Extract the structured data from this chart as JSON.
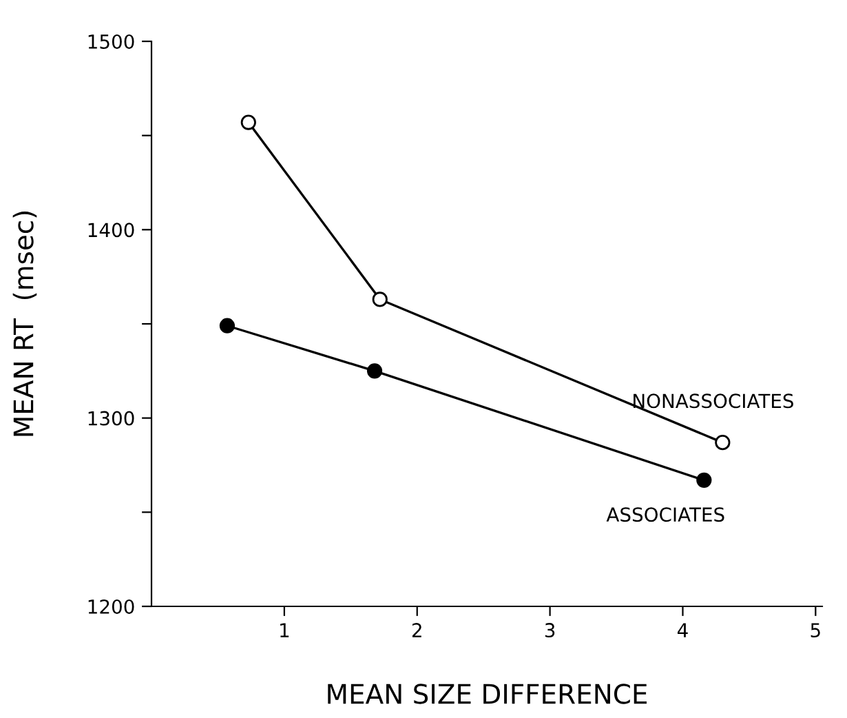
{
  "chart_data": {
    "type": "line",
    "xlabel": "MEAN SIZE DIFFERENCE",
    "ylabel": "MEAN RT  (msec)",
    "xlim": [
      0,
      5.05
    ],
    "xticks": [
      1,
      2,
      3,
      4,
      5
    ],
    "ylim": [
      1200,
      1500
    ],
    "yticks": [
      1200,
      {
        "value": 1250,
        "label": null
      },
      1300,
      {
        "value": 1350,
        "label": null
      },
      1400,
      {
        "value": 1450,
        "label": null
      },
      1500
    ],
    "grid": false,
    "legend": false,
    "series": [
      {
        "name": "NONASSOCIATES",
        "color": "#000000",
        "marker": "circle",
        "x": [
          0.73,
          1.72,
          4.3
        ],
        "values": [
          1457,
          1363,
          1287
        ]
      },
      {
        "name": "ASSOCIATES",
        "color": "#000000",
        "marker": "circle",
        "x": [
          0.57,
          1.68,
          4.16
        ],
        "values": [
          1349,
          1325,
          1267
        ]
      }
    ]
  }
}
